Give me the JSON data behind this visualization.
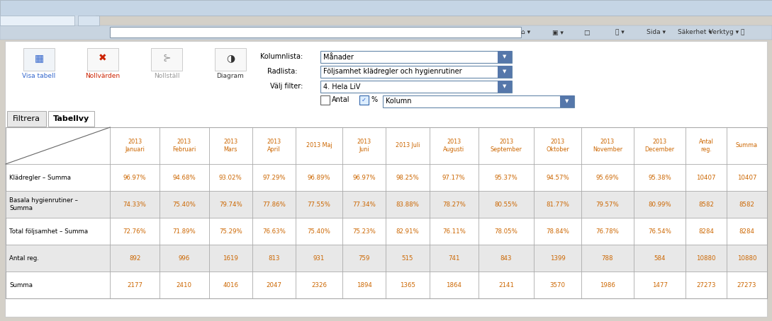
{
  "controls": {
    "kolumnlista": "Månader",
    "radlista": "Följsamhet klädregler och hygienrutiner",
    "valj_filter": "4. Hela LiV",
    "kolumn_dropdown": "Kolumn"
  },
  "tabs": [
    "Filtrera",
    "Tabellvy"
  ],
  "active_tab": "Tabellvy",
  "header_row": [
    "",
    "2013\nJanuari",
    "2013\nFebruari",
    "2013\nMars",
    "2013\nApril",
    "2013 Maj",
    "2013\nJuni",
    "2013 Juli",
    "2013\nAugusti",
    "2013\nSeptember",
    "2013\nOktober",
    "2013\nNovember",
    "2013\nDecember",
    "Antal\nreg.",
    "Summa"
  ],
  "rows": [
    {
      "label": "Klädregler – Summa",
      "values": [
        "96.97%",
        "94.68%",
        "93.02%",
        "97.29%",
        "96.89%",
        "96.97%",
        "98.25%",
        "97.17%",
        "95.37%",
        "94.57%",
        "95.69%",
        "95.38%",
        "10407",
        "10407"
      ],
      "bg": "#ffffff"
    },
    {
      "label": "Basala hygienrutiner –\nSumma",
      "values": [
        "74.33%",
        "75.40%",
        "79.74%",
        "77.86%",
        "77.55%",
        "77.34%",
        "83.88%",
        "78.27%",
        "80.55%",
        "81.77%",
        "79.57%",
        "80.99%",
        "8582",
        "8582"
      ],
      "bg": "#e8e8e8"
    },
    {
      "label": "Total följsamhet – Summa",
      "values": [
        "72.76%",
        "71.89%",
        "75.29%",
        "76.63%",
        "75.40%",
        "75.23%",
        "82.91%",
        "76.11%",
        "78.05%",
        "78.84%",
        "76.78%",
        "76.54%",
        "8284",
        "8284"
      ],
      "bg": "#ffffff"
    },
    {
      "label": "Antal reg.",
      "values": [
        "892",
        "996",
        "1619",
        "813",
        "931",
        "759",
        "515",
        "741",
        "843",
        "1399",
        "788",
        "584",
        "10880",
        "10880"
      ],
      "bg": "#e8e8e8"
    },
    {
      "label": "Summa",
      "values": [
        "2177",
        "2410",
        "4016",
        "2047",
        "2326",
        "1894",
        "1365",
        "1864",
        "2141",
        "3570",
        "1986",
        "1477",
        "27273",
        "27273"
      ],
      "bg": "#ffffff"
    }
  ],
  "table_text_color": "#cc6600",
  "label_text_color": "#000000",
  "header_text_color": "#cc6600",
  "toolbar_items": [
    "Visa tabell",
    "Nollvärden",
    "Nollställ",
    "Diagram"
  ],
  "toolbar_colors": [
    "#3366cc",
    "#cc2200",
    "#999999",
    "#333333"
  ],
  "col_widths_rel": [
    1.8,
    0.85,
    0.85,
    0.75,
    0.75,
    0.8,
    0.75,
    0.75,
    0.85,
    0.95,
    0.82,
    0.9,
    0.9,
    0.7,
    0.7
  ],
  "row_bgs": [
    "#ffffff",
    "#e8e8e8",
    "#ffffff",
    "#e8e8e8",
    "#ffffff"
  ]
}
